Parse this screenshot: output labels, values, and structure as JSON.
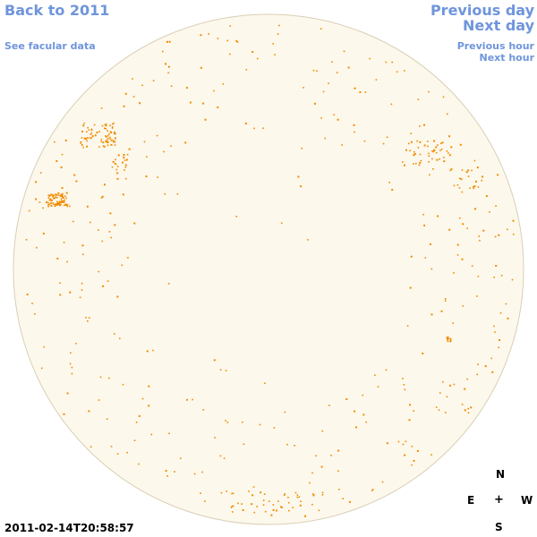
{
  "nav": {
    "back_to_year": "Back to 2011",
    "see_facular": "See facular data",
    "previous_day": "Previous day",
    "next_day": "Next day",
    "previous_hour": "Previous hour",
    "next_hour": "Next hour"
  },
  "compass": {
    "north": "N",
    "south": "S",
    "east": "E",
    "west": "W",
    "center": "+"
  },
  "timestamp": "2011-02-14T20:58:57",
  "colors": {
    "disk_fill": "#fdf8ec",
    "disk_stroke": "#d9cfb4",
    "faculae": "#f08c00",
    "link": "#6f95dc"
  }
}
